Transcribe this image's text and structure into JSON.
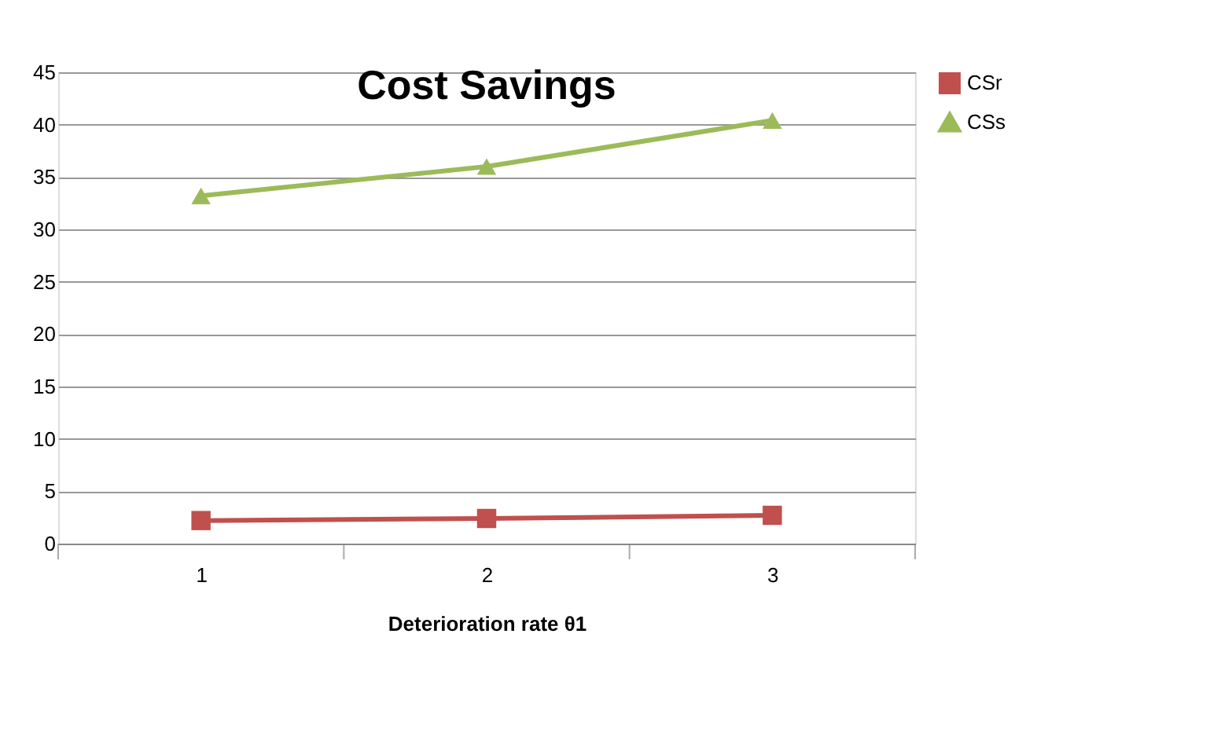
{
  "chart_data": {
    "type": "line",
    "title": "Cost Savings",
    "xlabel": "Deterioration rate θ1",
    "categories": [
      "1",
      "2",
      "3"
    ],
    "series": [
      {
        "name": "CSr",
        "color": "#c0504d",
        "marker": "square",
        "values": [
          2.2,
          2.4,
          2.7
        ]
      },
      {
        "name": "CSs",
        "color": "#9bbb59",
        "marker": "triangle",
        "values": [
          33.2,
          36.0,
          40.4
        ]
      }
    ],
    "ylim": [
      0,
      45
    ],
    "yticks": [
      0,
      5,
      10,
      15,
      20,
      25,
      30,
      35,
      40,
      45
    ],
    "grid": "y",
    "legend": "right",
    "line_style": "solid"
  }
}
